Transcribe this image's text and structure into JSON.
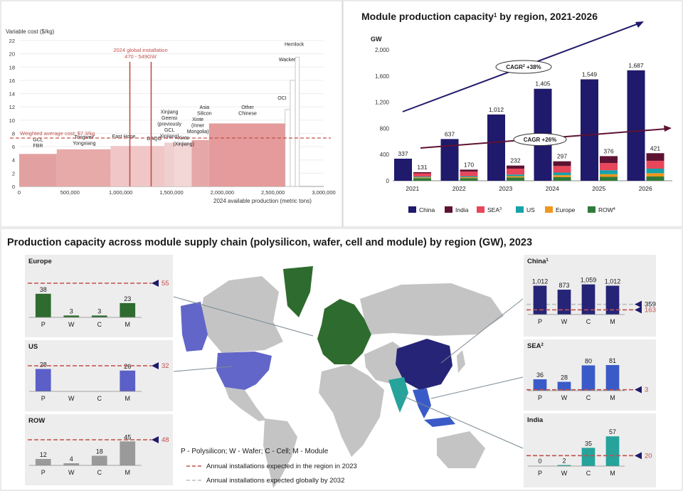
{
  "chart_data": [
    {
      "type": "bar",
      "subtype": "cost-curve",
      "ylabel": "Variable cost ($/kg)",
      "xlabel": "2024 available production (metric tons)",
      "ylim": [
        0,
        22
      ],
      "yticks": [
        0,
        2,
        4,
        6,
        8,
        10,
        12,
        14,
        16,
        18,
        20,
        22
      ],
      "xlim": [
        0,
        3000000
      ],
      "xticks": [
        0,
        500000,
        1000000,
        1500000,
        2000000,
        2500000,
        3000000
      ],
      "xtick_labels": [
        "0",
        "500,000",
        "1,000,000",
        "1,500,000",
        "2,000,000",
        "2,500,000",
        "3,000,000"
      ],
      "segments": [
        {
          "label": "GCL FBR",
          "x0": 0,
          "x1": 370000,
          "value": 4.9
        },
        {
          "label": "Tongwei/ Yongxiang",
          "x0": 370000,
          "x1": 900000,
          "value": 5.6
        },
        {
          "label": "East Hope",
          "x0": 900000,
          "x1": 1170000,
          "value": 6.1
        },
        {
          "label": "DAQO",
          "x0": 1170000,
          "x1": 1430000,
          "value": 6.1
        },
        {
          "label": "Xinjiang Geensi (previously GCL Xinjiang)",
          "x0": 1430000,
          "x1": 1530000,
          "value": 6.6
        },
        {
          "label": "Xinte (Xinjiang)",
          "x0": 1530000,
          "x1": 1700000,
          "value": 6.6
        },
        {
          "label": "Xinte (Inner Mongolia)",
          "x0": 1700000,
          "x1": 1770000,
          "value": 7.0
        },
        {
          "label": "Asia Silicon",
          "x0": 1770000,
          "x1": 1870000,
          "value": 7.0
        },
        {
          "label": "Other Chinese",
          "x0": 1870000,
          "x1": 2620000,
          "value": 9.5
        },
        {
          "label": "OCI",
          "x0": 2620000,
          "x1": 2670000,
          "value": 11.6
        },
        {
          "label": "Wacker",
          "x0": 2670000,
          "x1": 2720000,
          "value": 16.0
        },
        {
          "label": "Hemlock",
          "x0": 2720000,
          "x1": 2760000,
          "value": 19.5
        }
      ],
      "reference_line": {
        "label": "Weighted average cost: $7.3/kg",
        "value": 7.3
      },
      "vertical_lines": {
        "label_line1": "2024 global installation",
        "label_line2": "470 - 549GW",
        "x": [
          1090000,
          1300000
        ]
      }
    },
    {
      "type": "bar",
      "subtype": "grouped",
      "title": "Module production capacity",
      "title_sup": "1",
      "title_tail": " by region, 2021-2026",
      "ylabel": "GW",
      "ylim": [
        0,
        2000
      ],
      "yticks": [
        0,
        400,
        800,
        1200,
        1600,
        2000
      ],
      "ytick_labels": [
        "0",
        "400",
        "800",
        "1,200",
        "1,600",
        "2,000"
      ],
      "categories": [
        "2021",
        "2022",
        "2023",
        "2024",
        "2025",
        "2026"
      ],
      "china": {
        "name": "China",
        "values": [
          337,
          637,
          1012,
          1405,
          1549,
          1687
        ],
        "labels": [
          "337",
          "637",
          "1,012",
          "1,405",
          "1,549",
          "1,687"
        ]
      },
      "others_totals": {
        "values": [
          131,
          170,
          232,
          297,
          376,
          421
        ],
        "labels": [
          "131",
          "170",
          "232",
          "297",
          "376",
          "421"
        ]
      },
      "others_series": [
        {
          "name": "ROW",
          "sup": "4",
          "values": [
            40,
            40,
            50,
            55,
            60,
            65
          ]
        },
        {
          "name": "Europe",
          "values": [
            12,
            15,
            20,
            30,
            40,
            50
          ]
        },
        {
          "name": "US",
          "values": [
            12,
            15,
            25,
            40,
            60,
            70
          ]
        },
        {
          "name": "SEA",
          "sup": "3",
          "values": [
            50,
            70,
            90,
            100,
            110,
            120
          ]
        },
        {
          "name": "India",
          "values": [
            17,
            30,
            47,
            72,
            106,
            116
          ]
        }
      ],
      "cagr_labels": [
        {
          "text": "CAGR",
          "sup": "2",
          "tail": " +38%"
        },
        {
          "text": "CAGR +26%"
        }
      ]
    },
    {
      "type": "bar",
      "title": "Production capacity across module supply chain (polysilicon, wafer, cell and module) by region (GW), 2023",
      "categories": [
        "P",
        "W",
        "C",
        "M"
      ],
      "legend": {
        "abbrev": "P - Polysilicon; W - Wafer; C - Cell; M - Module",
        "line_region": "Annual installations expected in the region in 2023",
        "line_global": "Annual installations expected globally by 2032"
      },
      "regions": [
        {
          "name": "Europe",
          "values": [
            38,
            3,
            3,
            23
          ],
          "labels": [
            "38",
            "3",
            "3",
            "23"
          ],
          "installations": 55,
          "installations_label": "55"
        },
        {
          "name": "US",
          "values": [
            28,
            0,
            0,
            26
          ],
          "labels": [
            "28",
            "",
            "",
            "26"
          ],
          "installations": 32,
          "installations_label": "32"
        },
        {
          "name": "ROW",
          "values": [
            12,
            4,
            18,
            45
          ],
          "labels": [
            "12",
            "4",
            "18",
            "45"
          ],
          "installations": 48,
          "installations_label": "48"
        },
        {
          "name": "China",
          "sup": "1",
          "values": [
            1012,
            873,
            1059,
            1012
          ],
          "labels": [
            "1,012",
            "873",
            "1,059",
            "1,012"
          ],
          "installations": 163,
          "installations_label": "163",
          "global_installations": 359,
          "global_label": "359"
        },
        {
          "name": "SEA",
          "sup": "2",
          "values": [
            36,
            28,
            80,
            81
          ],
          "labels": [
            "36",
            "28",
            "80",
            "81"
          ],
          "installations": 3,
          "installations_label": "3"
        },
        {
          "name": "India",
          "values": [
            0,
            2,
            35,
            57
          ],
          "labels": [
            "0",
            "2",
            "35",
            "57"
          ],
          "installations": 20,
          "installations_label": "20"
        }
      ]
    }
  ],
  "colors": {
    "navy": "#1f1a6b",
    "india": "#5e1233",
    "sea": "#e8465a",
    "us": "#17a2a8",
    "europe": "#f0961d",
    "row": "#2f7a3a",
    "cost_fill": "#e3a0a0",
    "cost_light": "#f3d6d6",
    "red_line": "#c0504d",
    "europe_green": "#2e6b2e",
    "us_blue": "#5b5fc7",
    "row_grey": "#9a9a9a",
    "china_navy": "#262477",
    "sea_blue": "#3a5bc7",
    "india_teal": "#26a39b",
    "map_grey": "#c4c4c4"
  }
}
